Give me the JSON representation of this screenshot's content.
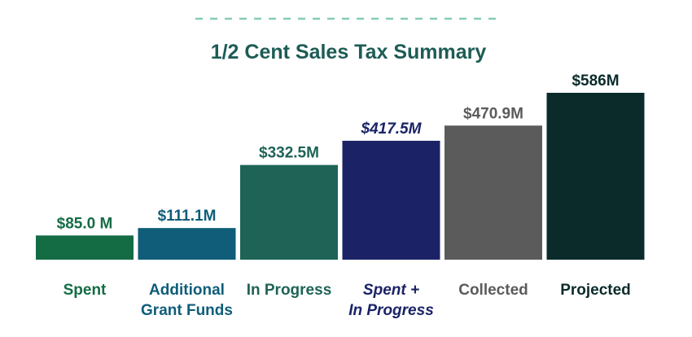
{
  "chart_data": {
    "type": "bar",
    "title": "1/2 Cent Sales Tax Summary",
    "unit": "$M",
    "categories": [
      [
        "Spent"
      ],
      [
        "Additional",
        "Grant Funds"
      ],
      [
        "In Progress"
      ],
      [
        "Spent +",
        "In Progress"
      ],
      [
        "Collected"
      ],
      [
        "Projected"
      ]
    ],
    "values": [
      85.0,
      111.1,
      332.5,
      417.5,
      470.9,
      586
    ],
    "value_labels": [
      "$85.0 M",
      "$111.1M",
      "$332.5M",
      "$417.5M",
      "$470.9M",
      "$586M"
    ],
    "colors": [
      "#146c45",
      "#0f5d79",
      "#1e6356",
      "#1b2366",
      "#5b5b5b",
      "#0b2b2b"
    ],
    "label_colors": [
      "#146c45",
      "#0f5d79",
      "#1e6356",
      "#1b2366",
      "#5b5b5b",
      "#0b2b2b"
    ],
    "italic": [
      false,
      false,
      false,
      true,
      false,
      false
    ],
    "accent_color": "#86cbb6",
    "title_color": "#1d5c55",
    "legend": "none",
    "grid": false
  }
}
